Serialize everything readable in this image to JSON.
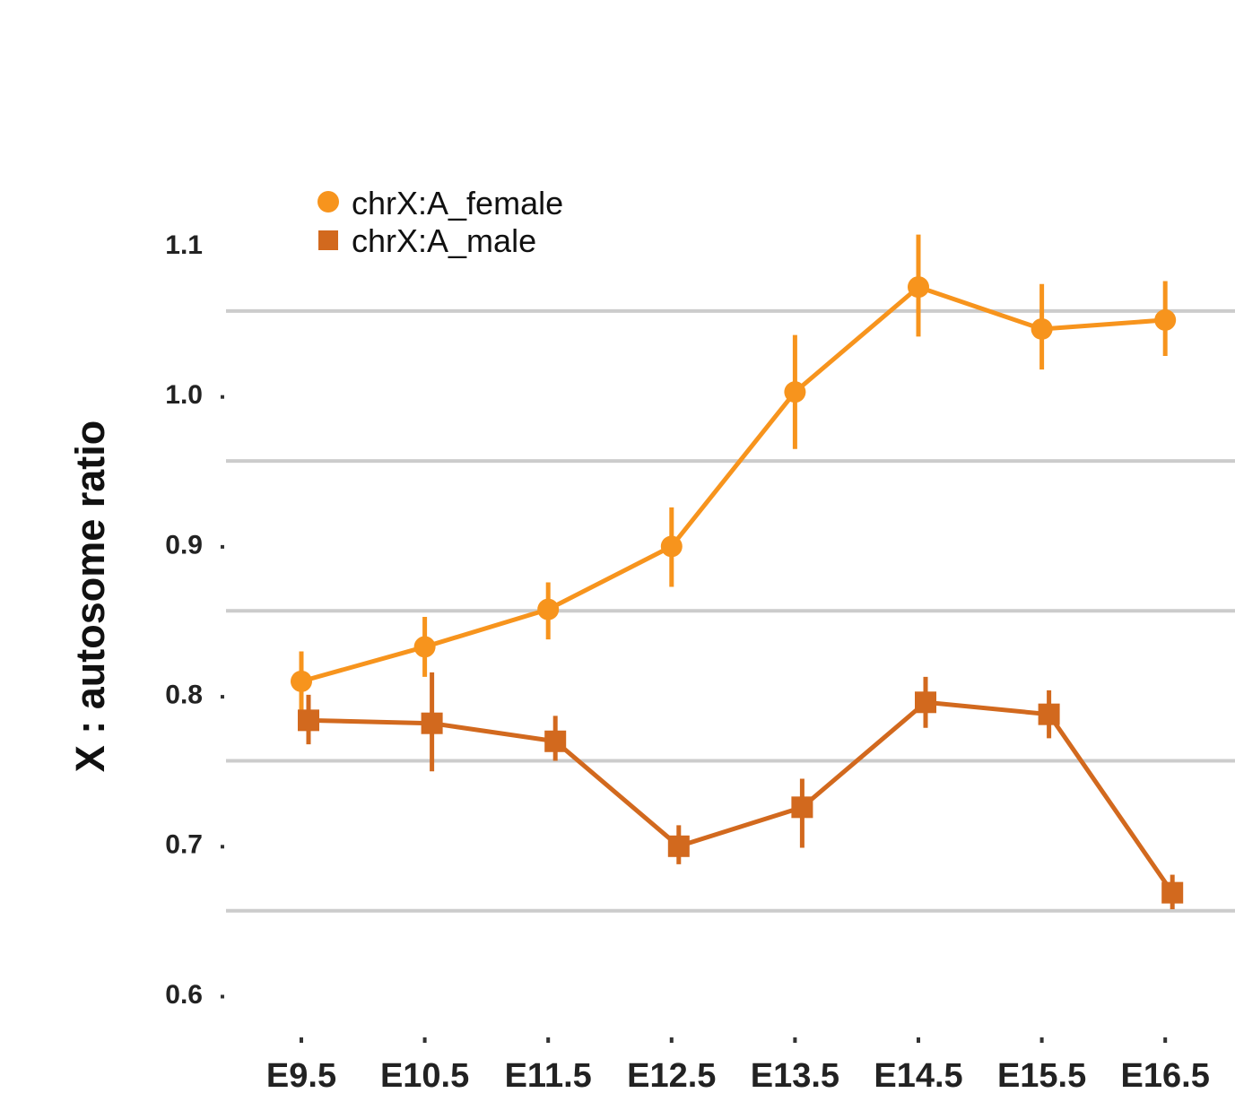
{
  "chart_data": {
    "type": "line",
    "title": "",
    "xlabel": "",
    "ylabel": "X : autosome ratio",
    "categories": [
      "E9.5",
      "E10.5",
      "E11.5",
      "E12.5",
      "E13.5",
      "E14.5",
      "E15.5",
      "E16.5"
    ],
    "yticks": [
      "0.6",
      "0.7",
      "0.8",
      "0.9",
      "1.0",
      "1.1"
    ],
    "ylim": [
      0.6,
      1.1
    ],
    "grid": true,
    "legend_position": "top-left",
    "series": [
      {
        "name": "chrX:A_female",
        "marker": "circle",
        "color": "#F7941D",
        "values": [
          0.81,
          0.833,
          0.858,
          0.9,
          1.003,
          1.073,
          1.045,
          1.051
        ],
        "error_low": [
          0.782,
          0.813,
          0.838,
          0.873,
          0.965,
          1.04,
          1.018,
          1.027
        ],
        "error_high": [
          0.83,
          0.853,
          0.876,
          0.926,
          1.041,
          1.108,
          1.075,
          1.077
        ]
      },
      {
        "name": "chrX:A_male",
        "marker": "square",
        "color": "#D2691E",
        "values": [
          0.784,
          0.782,
          0.77,
          0.7,
          0.726,
          0.796,
          0.788,
          0.669
        ],
        "error_low": [
          0.768,
          0.75,
          0.757,
          0.688,
          0.699,
          0.779,
          0.772,
          0.658
        ],
        "error_high": [
          0.801,
          0.816,
          0.787,
          0.714,
          0.745,
          0.813,
          0.804,
          0.681
        ]
      }
    ]
  }
}
